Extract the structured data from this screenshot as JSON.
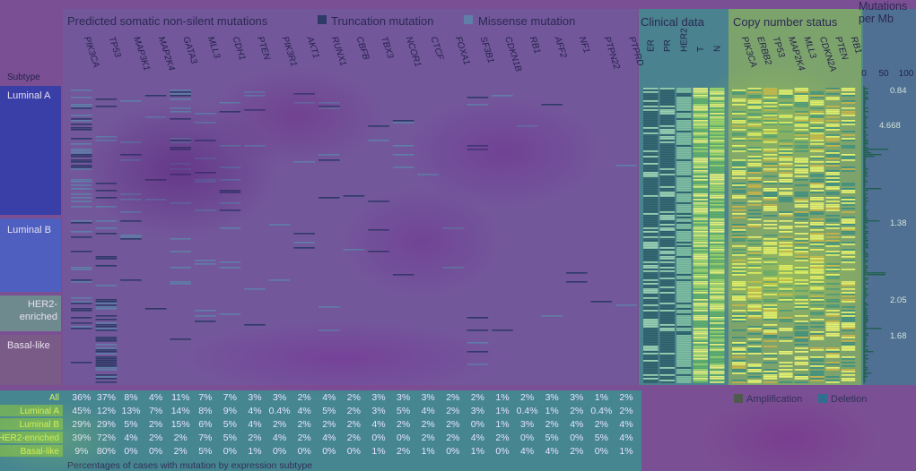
{
  "headers": {
    "mutations": "Predicted somatic non-silent mutations",
    "truncation": "Truncation mutation",
    "missense": "Missense mutation",
    "clinical": "Clinical data",
    "copy_number": "Copy number status",
    "tmb": "Mutations per Mb",
    "subtype": "Subtype",
    "amplification": "Amplification",
    "deletion": "Deletion",
    "footer": "Percentages of cases with mutation by expression subtype"
  },
  "colors": {
    "truncation": "#2e3a68",
    "missense": "#5f7fa8",
    "amplification": "#4d5a4d",
    "deletion": "#2f6f8f"
  },
  "chart_data": {
    "type": "table",
    "genes": [
      "PIK3CA",
      "TP53",
      "MAP3K1",
      "MAP2K4",
      "GATA3",
      "MLL3",
      "CDH1",
      "PTEN",
      "PIK3R1",
      "AKT1",
      "RUNX1",
      "CBFB",
      "TBX3",
      "NCOR1",
      "CTCF",
      "FOXA1",
      "SF3B1",
      "CDKN1B",
      "RB1",
      "AFF2",
      "NF1",
      "PTPN22",
      "PTPRD"
    ],
    "clinical_columns": [
      "ER",
      "PR",
      "HER2",
      "T",
      "N"
    ],
    "copy_number_genes": [
      "PIK3CA",
      "ERBB2",
      "TP53",
      "MAP2K4",
      "MLL3",
      "CDKN2A",
      "PTEN",
      "RB1"
    ],
    "tmb_axis": {
      "ticks": [
        "0",
        "50",
        "100"
      ]
    },
    "subtypes": [
      {
        "name": "Luminal A",
        "tmb_median": "0.84",
        "tmb_mean": "4.668"
      },
      {
        "name": "Luminal B",
        "tmb_median": "1.38"
      },
      {
        "name": "HER2-enriched",
        "tmb_median": "2.05"
      },
      {
        "name": "Basal-like",
        "tmb_median": "1.68"
      }
    ],
    "percentages": [
      {
        "label": "All",
        "values": [
          "36%",
          "37%",
          "8%",
          "4%",
          "11%",
          "7%",
          "7%",
          "3%",
          "3%",
          "2%",
          "4%",
          "2%",
          "3%",
          "3%",
          "3%",
          "2%",
          "2%",
          "1%",
          "2%",
          "3%",
          "3%",
          "1%",
          "2%"
        ]
      },
      {
        "label": "Luminal A",
        "values": [
          "45%",
          "12%",
          "13%",
          "7%",
          "14%",
          "8%",
          "9%",
          "4%",
          "0.4%",
          "4%",
          "5%",
          "2%",
          "3%",
          "5%",
          "4%",
          "2%",
          "3%",
          "1%",
          "0.4%",
          "1%",
          "2%",
          "0.4%",
          "2%"
        ]
      },
      {
        "label": "Luminal B",
        "values": [
          "29%",
          "29%",
          "5%",
          "2%",
          "15%",
          "6%",
          "5%",
          "4%",
          "2%",
          "2%",
          "2%",
          "2%",
          "4%",
          "2%",
          "2%",
          "2%",
          "0%",
          "1%",
          "3%",
          "2%",
          "4%",
          "2%",
          "4%"
        ]
      },
      {
        "label": "HER2-enriched",
        "values": [
          "39%",
          "72%",
          "4%",
          "2%",
          "2%",
          "7%",
          "5%",
          "2%",
          "4%",
          "2%",
          "4%",
          "2%",
          "0%",
          "0%",
          "2%",
          "2%",
          "4%",
          "2%",
          "0%",
          "5%",
          "0%",
          "5%",
          "4%"
        ]
      },
      {
        "label": "Basal-like",
        "values": [
          "9%",
          "80%",
          "0%",
          "0%",
          "2%",
          "5%",
          "0%",
          "1%",
          "0%",
          "0%",
          "0%",
          "0%",
          "1%",
          "2%",
          "1%",
          "0%",
          "1%",
          "0%",
          "4%",
          "4%",
          "2%",
          "0%",
          "1%"
        ]
      }
    ]
  }
}
